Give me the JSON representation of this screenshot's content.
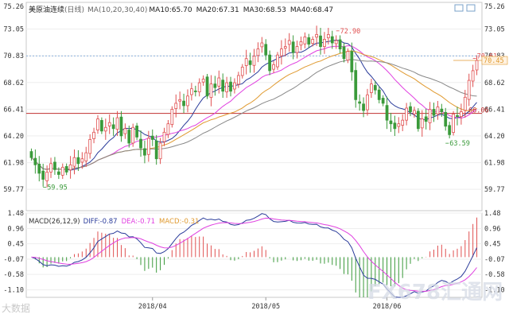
{
  "header": {
    "title": "美原油连续",
    "period": "(日线)",
    "ma_label": "MA(10,20,30,40)",
    "ma_values": [
      {
        "text": "MA10:65.70",
        "color": "#2a3b9a"
      },
      {
        "text": "MA20:67.31",
        "color": "#e040e0"
      },
      {
        "text": "MA30:68.53",
        "color": "#e09a30"
      },
      {
        "text": "MA40:68.47",
        "color": "#888888"
      }
    ]
  },
  "macd_header": {
    "label": "MACD(26,12,9)",
    "diff": "DIFF:-0.87",
    "dea": "DEA:-0.71",
    "macd": "MACD:-0.31"
  },
  "watermark_left": "大数据",
  "watermark_right": "FX678汇通网",
  "colors": {
    "up": "#e05050",
    "down": "#3a9a3a",
    "ma10": "#2a3b9a",
    "ma20": "#e040e0",
    "ma30": "#e09a30",
    "ma40": "#888888",
    "diff": "#2a3b9a",
    "dea": "#e040e0",
    "support": "#c03030",
    "last": "#e09a30"
  },
  "chart_data": {
    "type": "candlestick",
    "price_axis": {
      "ylim": [
        58.0,
        75.26
      ],
      "ticks": [
        "75.26",
        "73.05",
        "70.83",
        "68.62",
        "66.41",
        "64.20",
        "61.98",
        "59.77"
      ]
    },
    "macd_axis": {
      "ylim": [
        -1.35,
        1.48
      ],
      "ticks": [
        "1.48",
        "0.96",
        "0.45",
        "-0.07",
        "-0.58",
        "-1.10"
      ]
    },
    "x_labels": [
      {
        "index": 31,
        "text": "2018/04"
      },
      {
        "index": 60,
        "text": "2018/05"
      },
      {
        "index": 91,
        "text": "2018/06"
      }
    ],
    "annotations": {
      "high": {
        "index": 78,
        "value": 72.9,
        "text": "72.90"
      },
      "low_start": {
        "index": 3,
        "value": 59.95,
        "text": "59.95"
      },
      "low_recent": {
        "index": 106,
        "value": 63.59,
        "text": "63.59"
      },
      "last_high": {
        "index": 113,
        "value": 70.61,
        "text": "70.61"
      },
      "last_price": {
        "value": 70.45,
        "text": "70.45"
      },
      "level": {
        "value": 66.06,
        "text": "66.06"
      },
      "dotted_level": {
        "value": 70.83
      }
    },
    "closes": [
      62.4,
      61.8,
      61.1,
      60.6,
      61.2,
      61.9,
      61.4,
      61.0,
      61.6,
      61.2,
      61.8,
      62.4,
      61.9,
      62.3,
      62.8,
      63.9,
      64.5,
      65.6,
      64.6,
      64.9,
      65.3,
      64.8,
      65.7,
      64.2,
      64.8,
      63.6,
      64.9,
      64.1,
      63.2,
      62.6,
      64.0,
      63.9,
      62.3,
      63.6,
      64.5,
      65.2,
      66.4,
      66.9,
      67.2,
      66.7,
      67.5,
      68.1,
      67.9,
      68.6,
      68.9,
      67.5,
      68.5,
      68.2,
      69.0,
      67.9,
      68.6,
      67.9,
      68.6,
      69.2,
      69.9,
      70.6,
      70.1,
      70.8,
      71.4,
      71.9,
      70.9,
      69.6,
      70.1,
      70.9,
      71.4,
      71.6,
      72.1,
      71.1,
      71.6,
      72.0,
      72.4,
      71.8,
      72.2,
      72.6,
      71.6,
      72.2,
      72.6,
      71.9,
      72.1,
      71.4,
      70.6,
      71.2,
      69.5,
      67.2,
      66.9,
      66.3,
      67.6,
      68.5,
      68.0,
      67.2,
      66.9,
      65.5,
      65.2,
      64.8,
      65.2,
      65.5,
      66.5,
      66.2,
      66.3,
      64.8,
      65.6,
      65.4,
      66.4,
      65.9,
      66.6,
      66.2,
      65.0,
      64.3,
      66.0,
      65.8,
      66.2,
      67.4,
      68.8,
      69.6,
      70.45
    ]
  }
}
